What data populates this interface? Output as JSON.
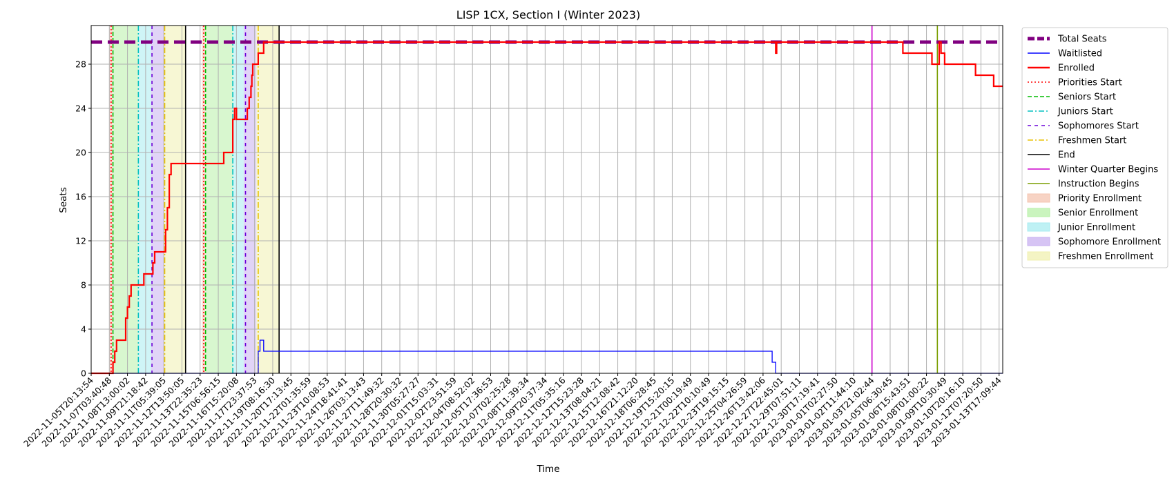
{
  "chart_data": {
    "type": "line",
    "title": "LISP 1CX, Section I (Winter 2023)",
    "xlabel": "Time",
    "ylabel": "Seats",
    "ylim": [
      0,
      31.5
    ],
    "y_ticks": [
      0,
      4,
      8,
      12,
      16,
      20,
      24,
      28
    ],
    "grid": true,
    "legend_position": "outside-right-top",
    "x_tick_labels": [
      "2022-11-05T20:13:54",
      "2022-11-07T03:40:48",
      "2022-11-08T13:00:02",
      "2022-11-09T21:18:42",
      "2022-11-11T05:39:05",
      "2022-11-12T13:50:05",
      "2022-11-13T22:35:23",
      "2022-11-15T06:56:15",
      "2022-11-16T15:20:08",
      "2022-11-17T23:37:53",
      "2022-11-19T08:16:30",
      "2022-11-20T17:13:45",
      "2022-11-22T01:35:59",
      "2022-11-23T10:08:53",
      "2022-11-24T18:41:41",
      "2022-11-26T03:13:43",
      "2022-11-27T11:49:32",
      "2022-11-28T20:30:32",
      "2022-11-30T05:27:27",
      "2022-12-01T15:03:31",
      "2022-12-02T23:51:59",
      "2022-12-04T08:52:02",
      "2022-12-05T17:36:53",
      "2022-12-07T02:25:28",
      "2022-12-08T11:39:34",
      "2022-12-09T20:37:34",
      "2022-12-11T05:35:16",
      "2022-12-12T15:23:28",
      "2022-12-13T08:04:21",
      "2022-12-15T12:08:42",
      "2022-12-16T21:12:20",
      "2022-12-18T06:28:45",
      "2022-12-19T15:20:15",
      "2022-12-21T00:19:49",
      "2022-12-22T10:10:49",
      "2022-12-23T19:15:15",
      "2022-12-25T04:26:59",
      "2022-12-26T13:42:06",
      "2022-12-27T22:45:01",
      "2022-12-29T07:51:11",
      "2022-12-30T17:19:41",
      "2023-01-01T02:27:50",
      "2023-01-02T11:44:10",
      "2023-01-03T21:02:44",
      "2023-01-05T06:30:45",
      "2023-01-06T15:43:51",
      "2023-01-08T01:00:22",
      "2023-01-09T10:30:49",
      "2023-01-10T20:16:10",
      "2023-01-12T07:20:50",
      "2023-01-13T17:09:44"
    ],
    "series": [
      {
        "name": "Total Seats",
        "color": "#800080",
        "style": "dashed-thick",
        "points": [
          [
            0,
            30
          ],
          [
            50.2,
            30
          ]
        ]
      },
      {
        "name": "Waitlisted",
        "color": "#0000ff",
        "style": "step",
        "points": [
          [
            0,
            0
          ],
          [
            9.2,
            0
          ],
          [
            9.2,
            2
          ],
          [
            9.3,
            2
          ],
          [
            9.3,
            3
          ],
          [
            9.5,
            3
          ],
          [
            9.5,
            2
          ],
          [
            37.5,
            2
          ],
          [
            37.5,
            1
          ],
          [
            37.7,
            1
          ],
          [
            37.7,
            0
          ],
          [
            50.2,
            0
          ]
        ]
      },
      {
        "name": "Enrolled",
        "color": "#ff0000",
        "style": "step",
        "points": [
          [
            0,
            0
          ],
          [
            1.2,
            0
          ],
          [
            1.2,
            1
          ],
          [
            1.3,
            1
          ],
          [
            1.3,
            2
          ],
          [
            1.4,
            2
          ],
          [
            1.4,
            3
          ],
          [
            1.9,
            3
          ],
          [
            1.9,
            5
          ],
          [
            2.0,
            5
          ],
          [
            2.0,
            6
          ],
          [
            2.1,
            6
          ],
          [
            2.1,
            7
          ],
          [
            2.2,
            7
          ],
          [
            2.2,
            8
          ],
          [
            2.9,
            8
          ],
          [
            2.9,
            9
          ],
          [
            3.4,
            9
          ],
          [
            3.4,
            10
          ],
          [
            3.5,
            10
          ],
          [
            3.5,
            11
          ],
          [
            4.1,
            11
          ],
          [
            4.1,
            13
          ],
          [
            4.2,
            13
          ],
          [
            4.2,
            15
          ],
          [
            4.3,
            15
          ],
          [
            4.3,
            18
          ],
          [
            4.4,
            18
          ],
          [
            4.4,
            19
          ],
          [
            7.3,
            19
          ],
          [
            7.3,
            20
          ],
          [
            7.8,
            20
          ],
          [
            7.8,
            23
          ],
          [
            7.9,
            23
          ],
          [
            7.9,
            24
          ],
          [
            8.0,
            24
          ],
          [
            8.0,
            23
          ],
          [
            8.6,
            23
          ],
          [
            8.6,
            24
          ],
          [
            8.7,
            24
          ],
          [
            8.7,
            25
          ],
          [
            8.8,
            25
          ],
          [
            8.8,
            26
          ],
          [
            8.85,
            26
          ],
          [
            8.85,
            27
          ],
          [
            8.9,
            27
          ],
          [
            8.9,
            28
          ],
          [
            9.2,
            28
          ],
          [
            9.2,
            29
          ],
          [
            9.5,
            29
          ],
          [
            9.5,
            30
          ],
          [
            37.7,
            30
          ],
          [
            37.7,
            29
          ],
          [
            37.75,
            29
          ],
          [
            37.75,
            30
          ],
          [
            44.7,
            30
          ],
          [
            44.7,
            29
          ],
          [
            46.3,
            29
          ],
          [
            46.3,
            28
          ],
          [
            46.7,
            28
          ],
          [
            46.7,
            30
          ],
          [
            46.8,
            30
          ],
          [
            46.8,
            29
          ],
          [
            47.0,
            29
          ],
          [
            47.0,
            28
          ],
          [
            48.7,
            28
          ],
          [
            48.7,
            27
          ],
          [
            49.7,
            27
          ],
          [
            49.7,
            26
          ],
          [
            50.2,
            26
          ]
        ]
      }
    ],
    "vertical_lines": [
      {
        "name": "Priorities Start",
        "color": "#ff0000",
        "style": "dotted",
        "x": [
          1.1,
          6.2
        ]
      },
      {
        "name": "Seniors Start",
        "color": "#00bb00",
        "style": "dashed",
        "x": [
          1.2,
          6.3
        ]
      },
      {
        "name": "Juniors Start",
        "color": "#00bfbf",
        "style": "dashdot",
        "x": [
          2.6,
          7.8
        ]
      },
      {
        "name": "Sophomores Start",
        "color": "#6a00d8",
        "style": "loosedash",
        "x": [
          3.35,
          8.5
        ]
      },
      {
        "name": "Freshmen Start",
        "color": "#e8c000",
        "style": "dashdot",
        "x": [
          4.05,
          9.2
        ]
      },
      {
        "name": "End",
        "color": "#000000",
        "style": "solid",
        "x": [
          5.2,
          10.35
        ]
      },
      {
        "name": "Winter Quarter Begins",
        "color": "#cc00cc",
        "style": "solid",
        "x": [
          43.0
        ]
      },
      {
        "name": "Instruction Begins",
        "color": "#7a9e00",
        "style": "solid",
        "x": [
          46.6
        ]
      }
    ],
    "shaded_regions": [
      {
        "name": "Priority Enrollment",
        "color": "#f4c4b0",
        "ranges": [
          [
            1.0,
            1.2
          ],
          [
            6.1,
            6.3
          ]
        ]
      },
      {
        "name": "Senior Enrollment",
        "color": "#b8f0a8",
        "ranges": [
          [
            1.2,
            2.6
          ],
          [
            6.3,
            7.8
          ]
        ]
      },
      {
        "name": "Junior Enrollment",
        "color": "#a8ecf0",
        "ranges": [
          [
            2.6,
            3.3
          ],
          [
            7.8,
            8.4
          ]
        ]
      },
      {
        "name": "Sophomore Enrollment",
        "color": "#c8b0f0",
        "ranges": [
          [
            3.3,
            4.0
          ],
          [
            8.4,
            9.1
          ]
        ]
      },
      {
        "name": "Freshmen Enrollment",
        "color": "#f0f0b0",
        "ranges": [
          [
            4.0,
            5.2
          ],
          [
            9.1,
            10.35
          ]
        ]
      }
    ],
    "legend": [
      {
        "label": "Total Seats",
        "kind": "line",
        "color": "#800080",
        "style": "dashed-thick"
      },
      {
        "label": "Waitlisted",
        "kind": "line",
        "color": "#0000ff",
        "style": "solid"
      },
      {
        "label": "Enrolled",
        "kind": "line",
        "color": "#ff0000",
        "style": "solid-thick"
      },
      {
        "label": "Priorities Start",
        "kind": "line",
        "color": "#ff0000",
        "style": "dotted"
      },
      {
        "label": "Seniors Start",
        "kind": "line",
        "color": "#00bb00",
        "style": "dashed"
      },
      {
        "label": "Juniors Start",
        "kind": "line",
        "color": "#00bfbf",
        "style": "dashdot"
      },
      {
        "label": "Sophomores Start",
        "kind": "line",
        "color": "#6a00d8",
        "style": "loosedash"
      },
      {
        "label": "Freshmen Start",
        "kind": "line",
        "color": "#e8c000",
        "style": "dashdot"
      },
      {
        "label": "End",
        "kind": "line",
        "color": "#000000",
        "style": "solid"
      },
      {
        "label": "Winter Quarter Begins",
        "kind": "line",
        "color": "#cc00cc",
        "style": "solid"
      },
      {
        "label": "Instruction Begins",
        "kind": "line",
        "color": "#7a9e00",
        "style": "solid"
      },
      {
        "label": "Priority Enrollment",
        "kind": "patch",
        "color": "#f4c4b0"
      },
      {
        "label": "Senior Enrollment",
        "kind": "patch",
        "color": "#b8f0a8"
      },
      {
        "label": "Junior Enrollment",
        "kind": "patch",
        "color": "#a8ecf0"
      },
      {
        "label": "Sophomore Enrollment",
        "kind": "patch",
        "color": "#c8b0f0"
      },
      {
        "label": "Freshmen Enrollment",
        "kind": "patch",
        "color": "#f0f0b0"
      }
    ]
  }
}
